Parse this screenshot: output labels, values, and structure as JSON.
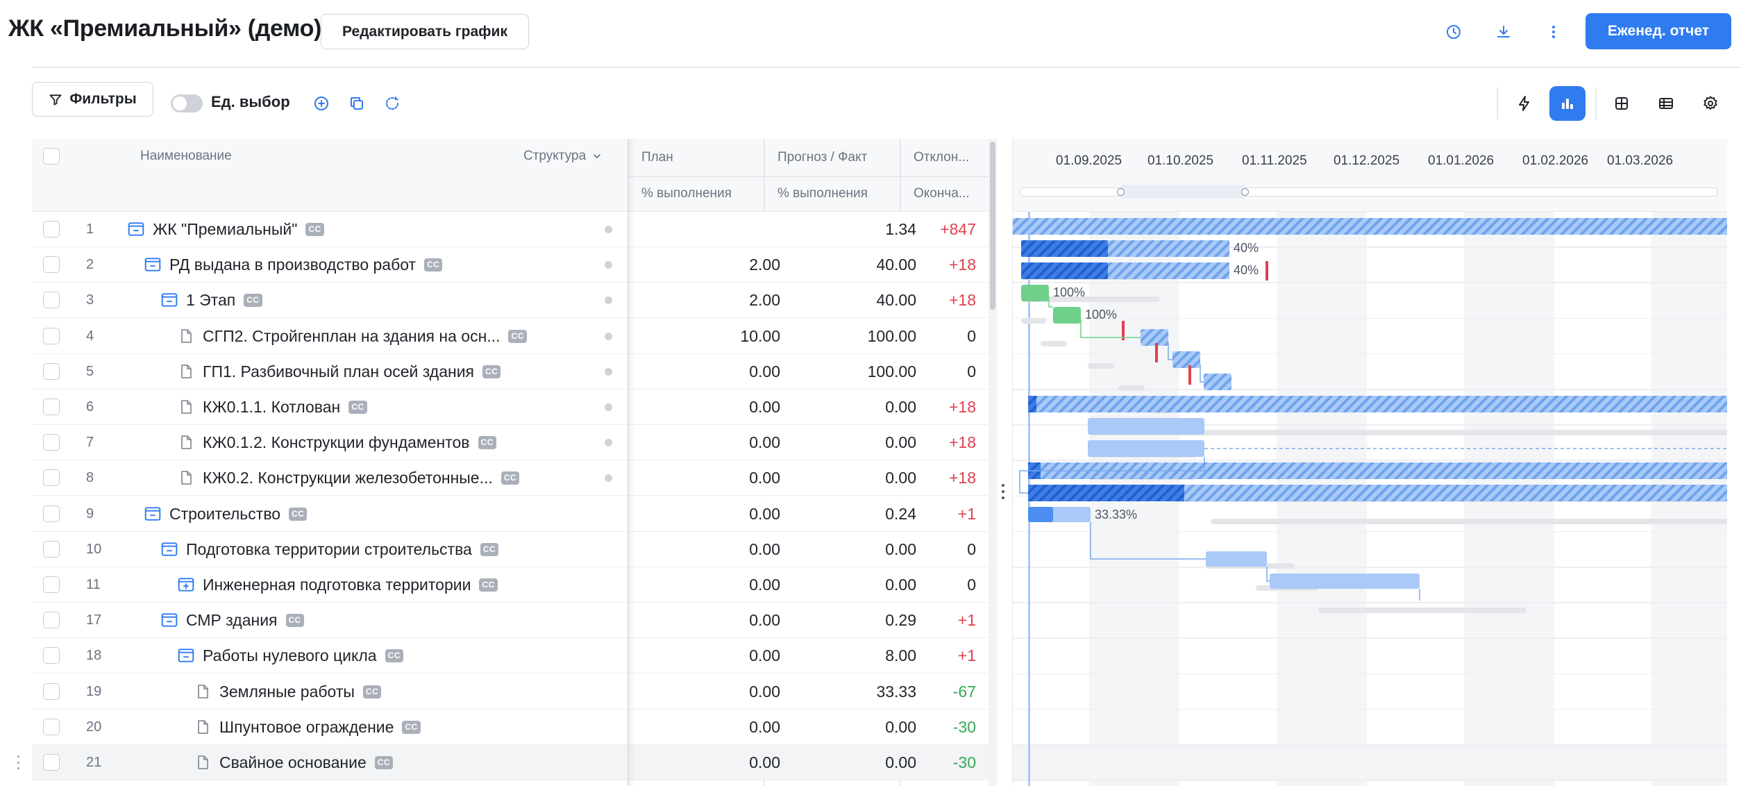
{
  "header": {
    "title": "ЖК «Премиальный» (демо)",
    "edit_button": "Редактировать график",
    "report_button": "Еженед. отчет"
  },
  "toolbar": {
    "filters_label": "Фильтры",
    "single_select_label": "Ед. выбор"
  },
  "table": {
    "columns": {
      "name": "Наименование",
      "structure": "Структура",
      "plan": "План",
      "plan_sub": "% выполнения",
      "forecast": "Прогноз / Факт",
      "forecast_sub": "% выполнения",
      "deviation": "Отклон...",
      "deviation_sub": "Оконча..."
    },
    "badge_text": "CC",
    "rows": [
      {
        "num": "1",
        "name": "ЖК \"Премиальный\"",
        "plan": "",
        "fact": "1.34",
        "dev": "+847"
      },
      {
        "num": "2",
        "name": "РД выдана в производство работ",
        "plan": "2.00",
        "fact": "40.00",
        "dev": "+18"
      },
      {
        "num": "3",
        "name": "1 Этап",
        "plan": "2.00",
        "fact": "40.00",
        "dev": "+18"
      },
      {
        "num": "4",
        "name": "СГП2. Стройгенплан на здания на осн...",
        "plan": "10.00",
        "fact": "100.00",
        "dev": "0"
      },
      {
        "num": "5",
        "name": "ГП1. Разбивочный план осей здания",
        "plan": "0.00",
        "fact": "100.00",
        "dev": "0"
      },
      {
        "num": "6",
        "name": "КЖ0.1.1. Котлован",
        "plan": "0.00",
        "fact": "0.00",
        "dev": "+18"
      },
      {
        "num": "7",
        "name": "КЖ0.1.2. Конструкции фундаментов",
        "plan": "0.00",
        "fact": "0.00",
        "dev": "+18"
      },
      {
        "num": "8",
        "name": "КЖ0.2. Конструкции железобетонные...",
        "plan": "0.00",
        "fact": "0.00",
        "dev": "+18"
      },
      {
        "num": "9",
        "name": "Строительство",
        "plan": "0.00",
        "fact": "0.24",
        "dev": "+1"
      },
      {
        "num": "10",
        "name": "Подготовка территории строительства",
        "plan": "0.00",
        "fact": "0.00",
        "dev": "0"
      },
      {
        "num": "11",
        "name": "Инженерная подготовка территории",
        "plan": "0.00",
        "fact": "0.00",
        "dev": "0"
      },
      {
        "num": "17",
        "name": "СМР здания",
        "plan": "0.00",
        "fact": "0.29",
        "dev": "+1"
      },
      {
        "num": "18",
        "name": "Работы нулевого цикла",
        "plan": "0.00",
        "fact": "8.00",
        "dev": "+1"
      },
      {
        "num": "19",
        "name": "Земляные работы",
        "plan": "0.00",
        "fact": "33.33",
        "dev": "-67"
      },
      {
        "num": "20",
        "name": "Шпунтовое ограждение",
        "plan": "0.00",
        "fact": "0.00",
        "dev": "-30"
      },
      {
        "num": "21",
        "name": "Свайное основание",
        "plan": "0.00",
        "fact": "0.00",
        "dev": "-30"
      }
    ]
  },
  "gantt": {
    "dates": [
      "01.09.2025",
      "01.10.2025",
      "01.11.2025",
      "01.12.2025",
      "01.01.2026",
      "01.02.2026",
      "01.03.2026"
    ],
    "labels": {
      "row2": "40%",
      "row3": "40%",
      "row4": "100%",
      "row5": "100%",
      "row19": "33.33%"
    }
  },
  "colors": {
    "accent": "#2f7bf0",
    "bar_blue": "#9ec0f5",
    "bar_dark": "#2d6fe0",
    "bar_green": "#6fd08a",
    "deviation_red": "#e0404f",
    "deviation_green": "#34a853"
  }
}
